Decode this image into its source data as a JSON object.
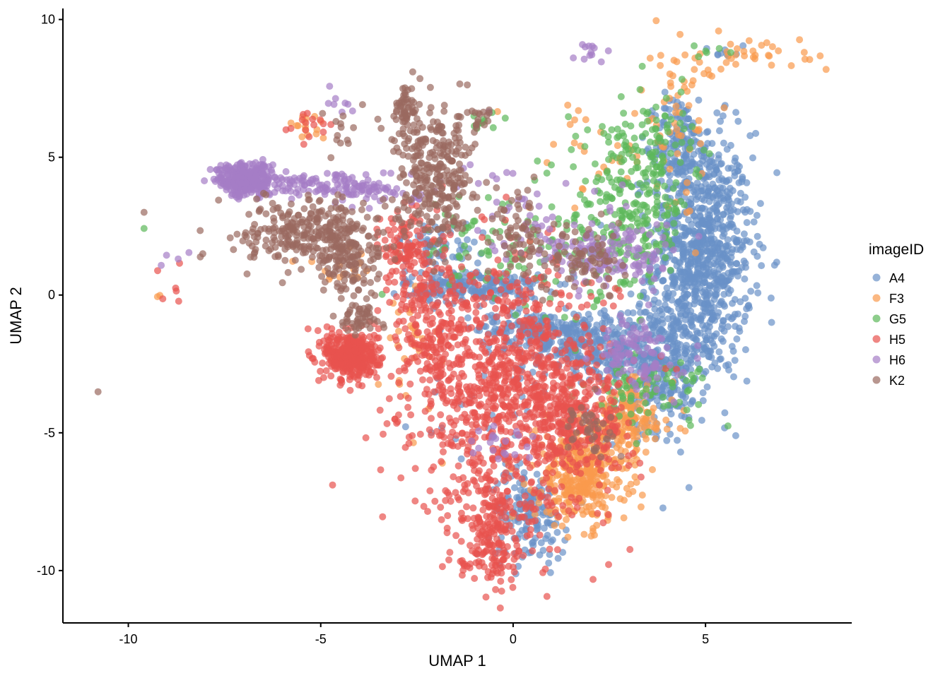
{
  "chart_data": {
    "type": "scatter",
    "title": "",
    "xlabel": "UMAP 1",
    "ylabel": "UMAP 2",
    "xlim": [
      -11.7,
      8.8
    ],
    "ylim": [
      -11.9,
      10.4
    ],
    "x_ticks": [
      -10,
      -5,
      0,
      5
    ],
    "y_ticks": [
      10,
      5,
      0,
      -5,
      -10
    ],
    "x_tick_labels": [
      "-10",
      "-5",
      "0",
      "5"
    ],
    "y_tick_labels": [
      "10",
      "5",
      "0",
      "-5",
      "-10"
    ],
    "grid": false,
    "legend": {
      "title": "imageID",
      "position": "right"
    },
    "point_alpha": 0.7,
    "series": [
      {
        "name": "A4",
        "color": "#6a92c8",
        "clusters": [
          {
            "cx": 4.9,
            "cy": 1.5,
            "sx": 0.65,
            "sy": 2.2,
            "n": 900
          },
          {
            "cx": 4.3,
            "cy": 5.5,
            "sx": 0.3,
            "sy": 0.9,
            "n": 120
          },
          {
            "cx": 3.8,
            "cy": -2.5,
            "sx": 0.7,
            "sy": 1.2,
            "n": 300
          },
          {
            "cx": 2.2,
            "cy": -2.0,
            "sx": 1.0,
            "sy": 0.5,
            "n": 250
          },
          {
            "cx": 0.8,
            "cy": -1.2,
            "sx": 0.9,
            "sy": 0.3,
            "n": 180
          },
          {
            "cx": -1.0,
            "cy": 0.3,
            "sx": 0.9,
            "sy": 0.3,
            "n": 220
          },
          {
            "cx": -2.0,
            "cy": 1.8,
            "sx": 0.5,
            "sy": 0.4,
            "n": 60
          },
          {
            "cx": 0.4,
            "cy": -8.0,
            "sx": 0.5,
            "sy": 0.8,
            "n": 150
          },
          {
            "cx": 5.5,
            "cy": 8.8,
            "sx": 0.3,
            "sy": 0.1,
            "n": 8
          },
          {
            "cx": 0.0,
            "cy": -4.0,
            "sx": 1.2,
            "sy": 2.0,
            "n": 40
          }
        ]
      },
      {
        "name": "F3",
        "color": "#fa9a4d",
        "clusters": [
          {
            "cx": 1.8,
            "cy": -6.5,
            "sx": 0.6,
            "sy": 0.9,
            "n": 380
          },
          {
            "cx": 3.0,
            "cy": -4.5,
            "sx": 0.6,
            "sy": 0.6,
            "n": 150
          },
          {
            "cx": 4.3,
            "cy": 6.5,
            "sx": 0.5,
            "sy": 1.6,
            "n": 60
          },
          {
            "cx": 5.8,
            "cy": 8.7,
            "sx": 0.9,
            "sy": 0.2,
            "n": 30
          },
          {
            "cx": 7.5,
            "cy": 8.5,
            "sx": 0.4,
            "sy": 0.2,
            "n": 5
          },
          {
            "cx": -5.4,
            "cy": 6.1,
            "sx": 0.3,
            "sy": 0.2,
            "n": 15
          },
          {
            "cx": -2.5,
            "cy": -2.0,
            "sx": 0.4,
            "sy": 1.2,
            "n": 30
          },
          {
            "cx": 2.0,
            "cy": 5.0,
            "sx": 0.8,
            "sy": 1.0,
            "n": 30
          },
          {
            "cx": -9.1,
            "cy": 0.0,
            "sx": 0.1,
            "sy": 0.1,
            "n": 2
          },
          {
            "cx": -4.6,
            "cy": 1.0,
            "sx": 0.5,
            "sy": 0.3,
            "n": 15
          }
        ]
      },
      {
        "name": "G5",
        "color": "#5cb85a",
        "clusters": [
          {
            "cx": 3.0,
            "cy": 3.0,
            "sx": 0.8,
            "sy": 1.5,
            "n": 260
          },
          {
            "cx": 3.8,
            "cy": 5.6,
            "sx": 0.5,
            "sy": 0.9,
            "n": 60
          },
          {
            "cx": 0.8,
            "cy": 1.5,
            "sx": 0.8,
            "sy": 1.0,
            "n": 60
          },
          {
            "cx": 3.5,
            "cy": -3.5,
            "sx": 0.8,
            "sy": 0.6,
            "n": 80
          },
          {
            "cx": -1.5,
            "cy": 2.0,
            "sx": 0.8,
            "sy": 0.8,
            "n": 40
          },
          {
            "cx": -0.9,
            "cy": 6.3,
            "sx": 0.4,
            "sy": 0.2,
            "n": 10
          },
          {
            "cx": -9.6,
            "cy": 2.4,
            "sx": 0.05,
            "sy": 0.05,
            "n": 1
          },
          {
            "cx": 5.5,
            "cy": 8.8,
            "sx": 0.5,
            "sy": 0.2,
            "n": 6
          }
        ]
      },
      {
        "name": "H5",
        "color": "#e8524f",
        "clusters": [
          {
            "cx": 0.0,
            "cy": -3.5,
            "sx": 1.3,
            "sy": 2.3,
            "n": 1000
          },
          {
            "cx": -2.2,
            "cy": -1.0,
            "sx": 0.5,
            "sy": 1.5,
            "n": 200
          },
          {
            "cx": -4.2,
            "cy": -2.2,
            "sx": 0.35,
            "sy": 0.45,
            "n": 380
          },
          {
            "cx": -2.8,
            "cy": 1.8,
            "sx": 0.3,
            "sy": 0.7,
            "n": 100
          },
          {
            "cx": -0.6,
            "cy": -8.5,
            "sx": 0.4,
            "sy": 1.0,
            "n": 200
          },
          {
            "cx": 1.5,
            "cy": -4.5,
            "sx": 0.7,
            "sy": 1.0,
            "n": 200
          },
          {
            "cx": -5.3,
            "cy": 6.3,
            "sx": 0.3,
            "sy": 0.3,
            "n": 15
          },
          {
            "cx": -8.8,
            "cy": 0.6,
            "sx": 0.3,
            "sy": 0.5,
            "n": 6
          }
        ]
      },
      {
        "name": "H6",
        "color": "#a57ec6",
        "clusters": [
          {
            "cx": -7.0,
            "cy": 4.2,
            "sx": 0.35,
            "sy": 0.3,
            "n": 300
          },
          {
            "cx": -5.0,
            "cy": 4.0,
            "sx": 1.0,
            "sy": 0.25,
            "n": 120
          },
          {
            "cx": -3.3,
            "cy": 3.7,
            "sx": 0.6,
            "sy": 0.2,
            "n": 40
          },
          {
            "cx": 2.5,
            "cy": 1.5,
            "sx": 0.9,
            "sy": 0.6,
            "n": 150
          },
          {
            "cx": 3.2,
            "cy": -2.2,
            "sx": 0.5,
            "sy": 0.7,
            "n": 100
          },
          {
            "cx": 2.0,
            "cy": 8.8,
            "sx": 0.3,
            "sy": 0.2,
            "n": 12
          },
          {
            "cx": -4.6,
            "cy": 7.0,
            "sx": 0.2,
            "sy": 0.2,
            "n": 8
          },
          {
            "cx": -0.5,
            "cy": -5.5,
            "sx": 0.6,
            "sy": 0.5,
            "n": 20
          },
          {
            "cx": 0.3,
            "cy": 3.3,
            "sx": 0.8,
            "sy": 1.0,
            "n": 40
          },
          {
            "cx": -8.9,
            "cy": 1.4,
            "sx": 0.4,
            "sy": 0.2,
            "n": 4
          }
        ]
      },
      {
        "name": "K2",
        "color": "#9a6a60",
        "clusters": [
          {
            "cx": -2.0,
            "cy": 4.3,
            "sx": 0.5,
            "sy": 1.2,
            "n": 300
          },
          {
            "cx": -2.8,
            "cy": 6.8,
            "sx": 0.15,
            "sy": 0.5,
            "n": 50
          },
          {
            "cx": -5.2,
            "cy": 2.3,
            "sx": 0.9,
            "sy": 0.6,
            "n": 300
          },
          {
            "cx": -4.3,
            "cy": 1.2,
            "sx": 0.4,
            "sy": 0.6,
            "n": 100
          },
          {
            "cx": -4.0,
            "cy": -0.8,
            "sx": 0.3,
            "sy": 0.3,
            "n": 50
          },
          {
            "cx": 0.2,
            "cy": 2.3,
            "sx": 0.3,
            "sy": 0.8,
            "n": 60
          },
          {
            "cx": 1.8,
            "cy": 1.3,
            "sx": 0.6,
            "sy": 0.6,
            "n": 80
          },
          {
            "cx": -0.8,
            "cy": 6.5,
            "sx": 0.15,
            "sy": 0.2,
            "n": 15
          },
          {
            "cx": 2.0,
            "cy": -4.8,
            "sx": 0.5,
            "sy": 0.6,
            "n": 40
          },
          {
            "cx": -9.6,
            "cy": 3.0,
            "sx": 0.02,
            "sy": 0.02,
            "n": 1
          },
          {
            "cx": -10.8,
            "cy": -3.5,
            "sx": 0.02,
            "sy": 0.02,
            "n": 1
          },
          {
            "cx": -8.1,
            "cy": 1.5,
            "sx": 0.05,
            "sy": 0.05,
            "n": 2
          },
          {
            "cx": -4.3,
            "cy": 5.8,
            "sx": 0.4,
            "sy": 0.6,
            "n": 15
          }
        ]
      }
    ]
  }
}
